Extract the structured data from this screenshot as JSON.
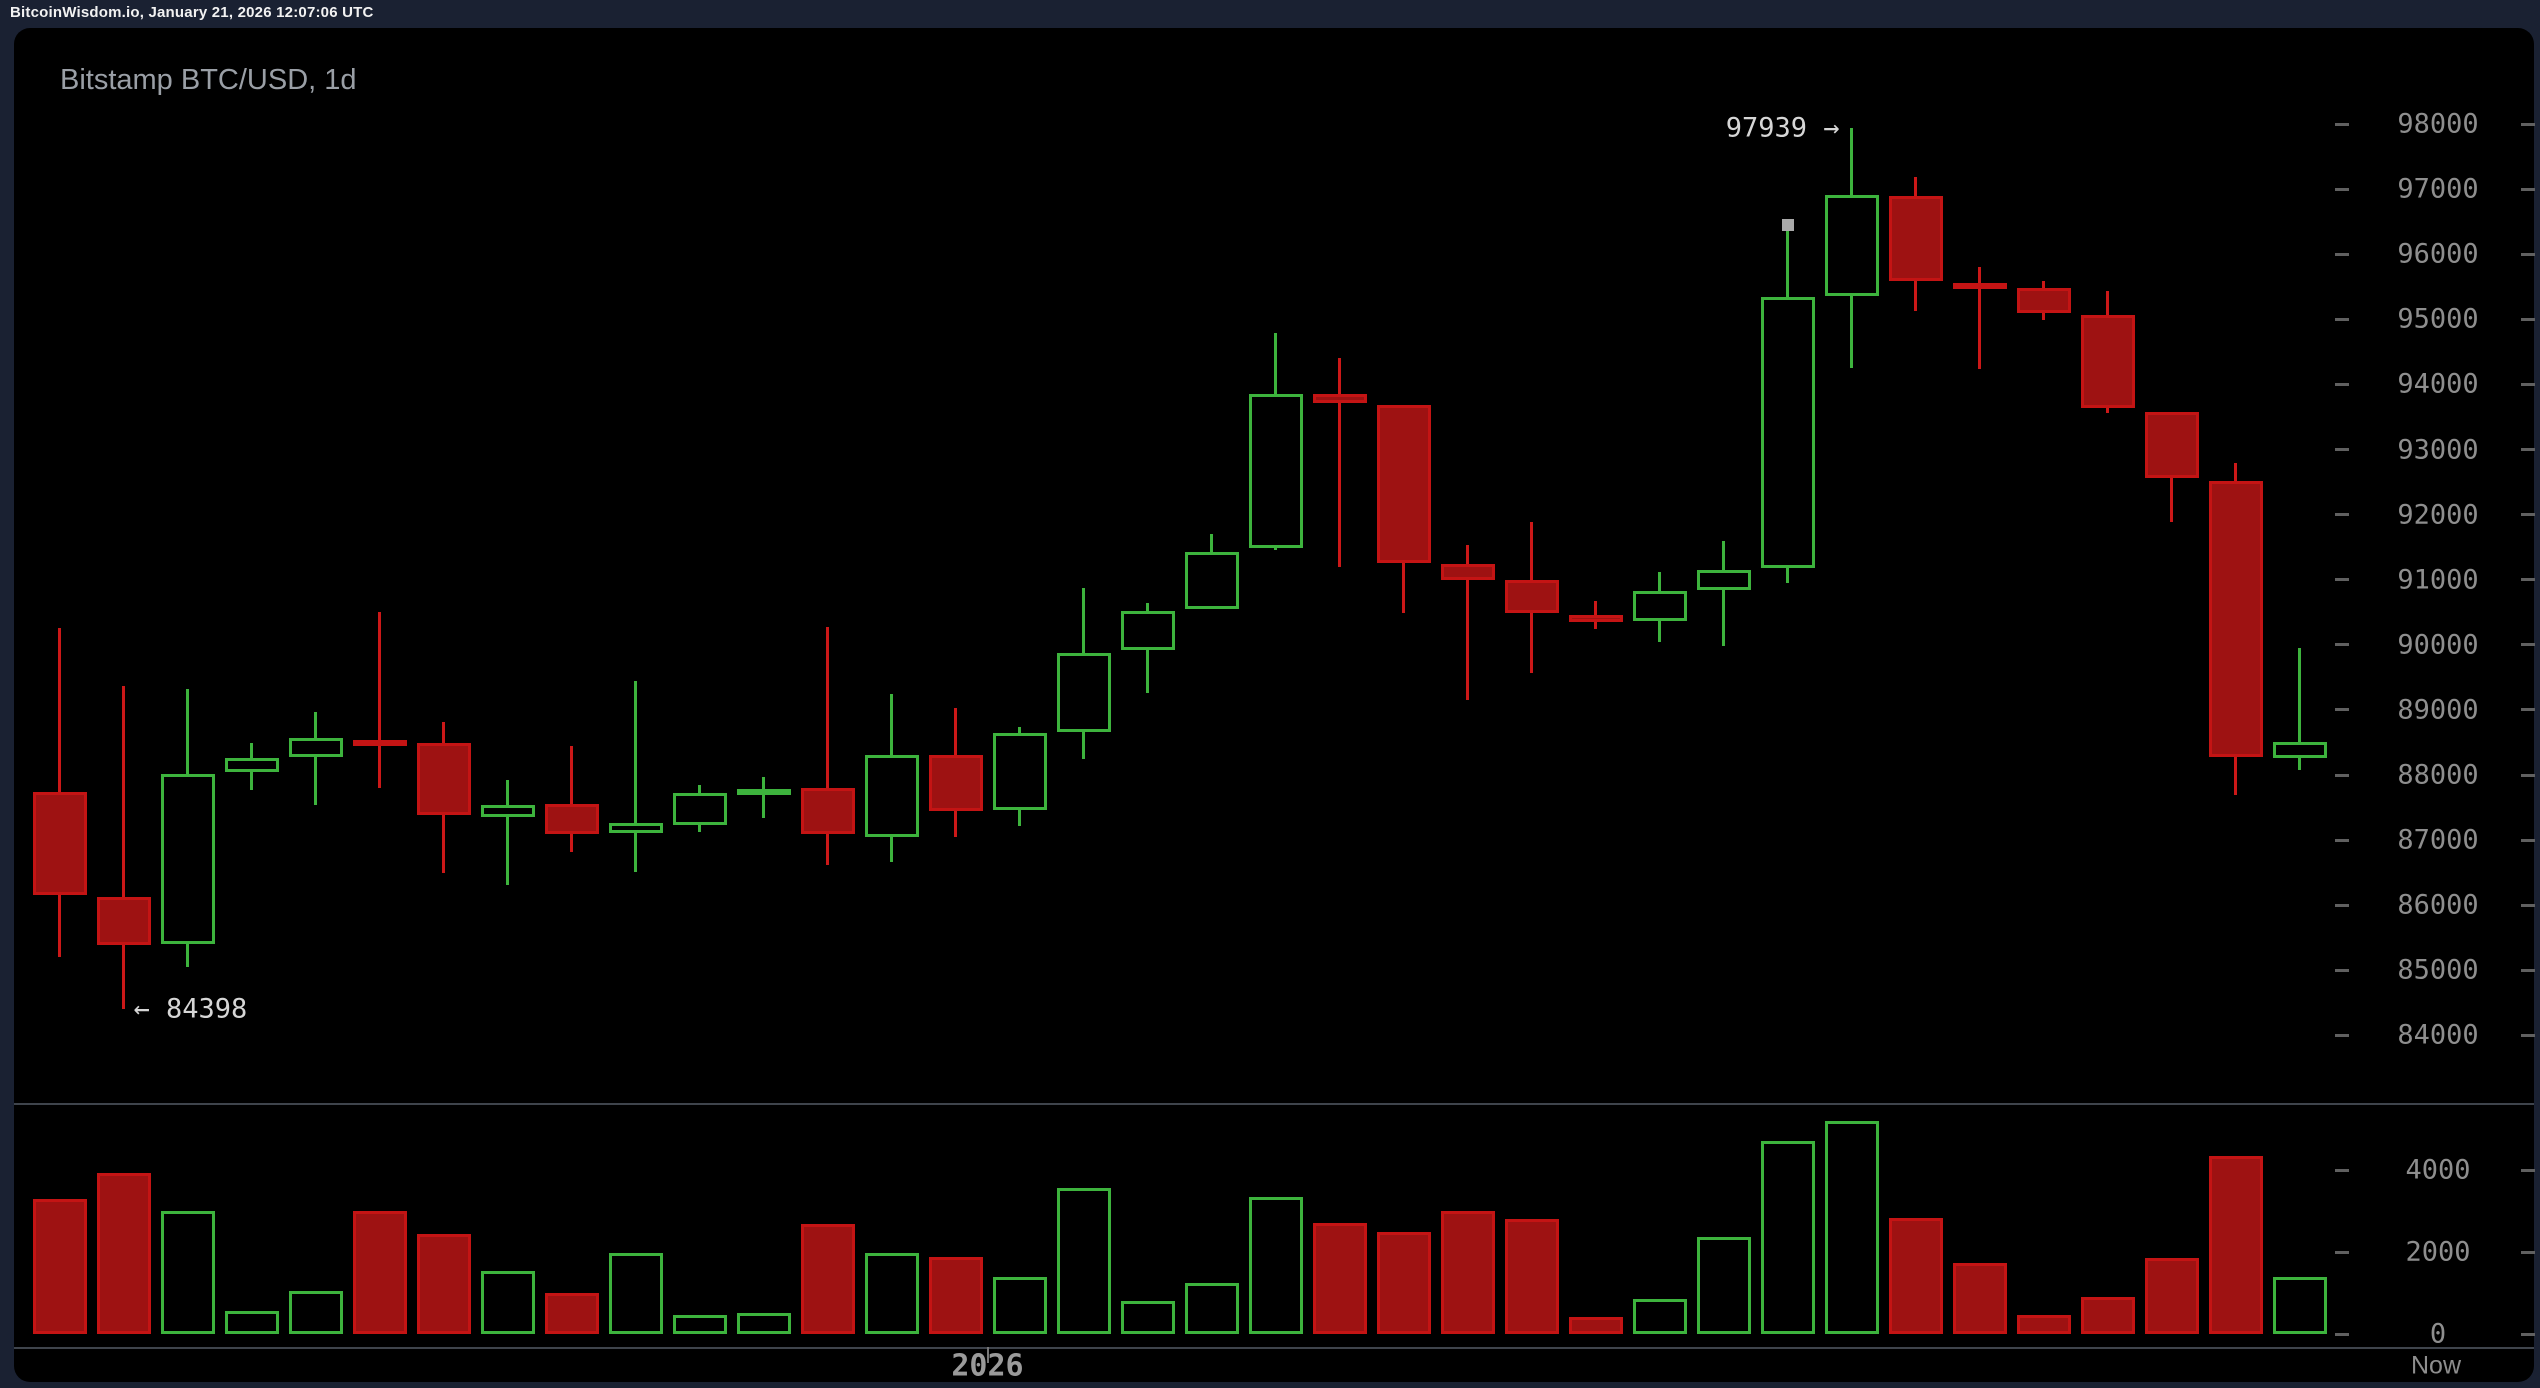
{
  "header": {
    "title": "BitcoinWisdom.io, January 21, 2026 12:07:06 UTC"
  },
  "chart": {
    "title": "Bitstamp BTC/USD, 1d",
    "high_annotation": "97939 →",
    "low_annotation": "← 84398",
    "year_label": "2026",
    "now_label": "Now",
    "colors": {
      "up": "#3db33d",
      "down_fill": "#9e1212",
      "down_stroke": "#c41414",
      "axis_text": "#8e8e8e",
      "annotation_text": "#d6d6d6",
      "chart_background": "#000000",
      "frame_background": "#1a2132"
    }
  },
  "chart_data": {
    "type": "candlestick",
    "exchange": "Bitstamp",
    "pair": "BTC/USD",
    "interval": "1d",
    "legend_position": "none",
    "grid": false,
    "price_ticks": [
      98000,
      97000,
      96000,
      95000,
      94000,
      93000,
      92000,
      91000,
      90000,
      89000,
      88000,
      87000,
      86000,
      85000,
      84000
    ],
    "volume_ticks": [
      4000,
      2000,
      0
    ],
    "price_axis_visible_range": [
      83300,
      98950
    ],
    "volume_axis_visible_range": [
      0,
      5700
    ],
    "high_label_value": 97939,
    "high_label_candle_index": 28,
    "low_label_value": 84398,
    "low_label_candle_index": 1,
    "marker": {
      "candle_index": 27,
      "price": 96450
    },
    "candles_note": "each candle = [open, high, low, close, volume]",
    "candles": [
      [
        87740,
        90260,
        85200,
        86160,
        3290
      ],
      [
        86130,
        89370,
        84398,
        85390,
        3930
      ],
      [
        85400,
        89320,
        85050,
        88010,
        3000
      ],
      [
        88050,
        88490,
        87770,
        88260,
        560
      ],
      [
        88280,
        88970,
        87540,
        88570,
        1050
      ],
      [
        88540,
        90500,
        87800,
        88480,
        3000
      ],
      [
        88490,
        88810,
        86490,
        87380,
        2440
      ],
      [
        87350,
        87920,
        86310,
        87540,
        1540
      ],
      [
        87550,
        88440,
        86820,
        87090,
        1000
      ],
      [
        87110,
        89440,
        86510,
        87260,
        1980
      ],
      [
        87230,
        87850,
        87120,
        87720,
        460
      ],
      [
        87750,
        87970,
        87340,
        87790,
        510
      ],
      [
        87800,
        90270,
        86620,
        87090,
        2680
      ],
      [
        87050,
        89240,
        86660,
        88310,
        1980
      ],
      [
        88310,
        89030,
        87050,
        87450,
        1880
      ],
      [
        87460,
        88740,
        87220,
        88640,
        1390
      ],
      [
        88660,
        90880,
        88250,
        89870,
        3560
      ],
      [
        89920,
        90640,
        89260,
        90520,
        800
      ],
      [
        90550,
        91700,
        90550,
        91420,
        1240
      ],
      [
        91490,
        94790,
        91460,
        93850,
        3340
      ],
      [
        93850,
        94400,
        91190,
        93710,
        2710
      ],
      [
        93680,
        93680,
        90490,
        91260,
        2490
      ],
      [
        91240,
        91530,
        89150,
        91000,
        3000
      ],
      [
        91000,
        91890,
        89570,
        90490,
        2800
      ],
      [
        90460,
        90670,
        90240,
        90350,
        410
      ],
      [
        90370,
        91120,
        90040,
        90830,
        850
      ],
      [
        90840,
        91600,
        89980,
        91150,
        2370
      ],
      [
        91180,
        96400,
        90950,
        95340,
        4710
      ],
      [
        95360,
        97939,
        94250,
        96910,
        5190
      ],
      [
        96890,
        97180,
        95130,
        95590,
        2830
      ],
      [
        95560,
        95800,
        94240,
        95490,
        1730
      ],
      [
        95480,
        95590,
        94990,
        95100,
        460
      ],
      [
        95060,
        95430,
        93560,
        93640,
        900
      ],
      [
        93580,
        93580,
        91890,
        92560,
        1850
      ],
      [
        92520,
        92790,
        87690,
        88280,
        4340
      ],
      [
        88260,
        89950,
        88080,
        88510,
        1390
      ]
    ]
  }
}
